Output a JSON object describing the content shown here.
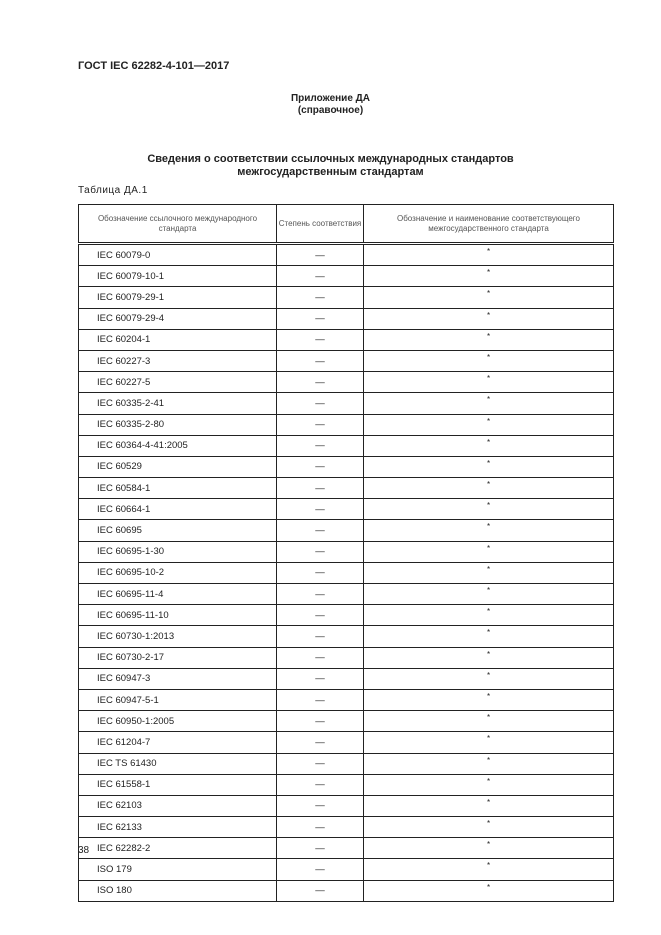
{
  "header": {
    "doc_id": "ГОСТ IEC 62282-4-101—2017"
  },
  "annex": {
    "title": "Приложение ДА",
    "subtitle": "(справочное)"
  },
  "section_title": {
    "line1": "Сведения о соответствии ссылочных международных стандартов",
    "line2": "межгосударственным стандартам"
  },
  "table_label": "Таблица ДА.1",
  "table": {
    "columns": [
      "Обозначение ссылочного международного стандарта",
      "Степень соответствия",
      "Обозначение и наименование соответствующего межгосударственного стандарта"
    ],
    "rows": [
      [
        "IEC 60079-0",
        "—",
        "*"
      ],
      [
        "IEC 60079-10-1",
        "—",
        "*"
      ],
      [
        "IEC 60079-29-1",
        "—",
        "*"
      ],
      [
        "IEC 60079-29-4",
        "—",
        "*"
      ],
      [
        "IEC 60204-1",
        "—",
        "*"
      ],
      [
        "IEC 60227-3",
        "—",
        "*"
      ],
      [
        "IEC 60227-5",
        "—",
        "*"
      ],
      [
        "IEC 60335-2-41",
        "—",
        "*"
      ],
      [
        "IEC 60335-2-80",
        "—",
        "*"
      ],
      [
        "IEC 60364-4-41:2005",
        "—",
        "*"
      ],
      [
        "IEC 60529",
        "—",
        "*"
      ],
      [
        "IEC 60584-1",
        "—",
        "*"
      ],
      [
        "IEC 60664-1",
        "—",
        "*"
      ],
      [
        "IEC 60695",
        "—",
        "*"
      ],
      [
        "IEC 60695-1-30",
        "—",
        "*"
      ],
      [
        "IEC 60695-10-2",
        "—",
        "*"
      ],
      [
        "IEC 60695-11-4",
        "—",
        "*"
      ],
      [
        "IEC 60695-11-10",
        "—",
        "*"
      ],
      [
        "IEC 60730-1:2013",
        "—",
        "*"
      ],
      [
        "IEC 60730-2-17",
        "—",
        "*"
      ],
      [
        "IEC 60947-3",
        "—",
        "*"
      ],
      [
        "IEC 60947-5-1",
        "—",
        "*"
      ],
      [
        "IEC 60950-1:2005",
        "—",
        "*"
      ],
      [
        "IEC 61204-7",
        "—",
        "*"
      ],
      [
        "IEC TS 61430",
        "—",
        "*"
      ],
      [
        "IEC 61558-1",
        "—",
        "*"
      ],
      [
        "IEC 62103",
        "—",
        "*"
      ],
      [
        "IEC 62133",
        "—",
        "*"
      ],
      [
        "IEC 62282-2",
        "—",
        "*"
      ],
      [
        "ISO 179",
        "—",
        "*"
      ],
      [
        "ISO 180",
        "—",
        "*"
      ]
    ]
  },
  "page_number": "38"
}
